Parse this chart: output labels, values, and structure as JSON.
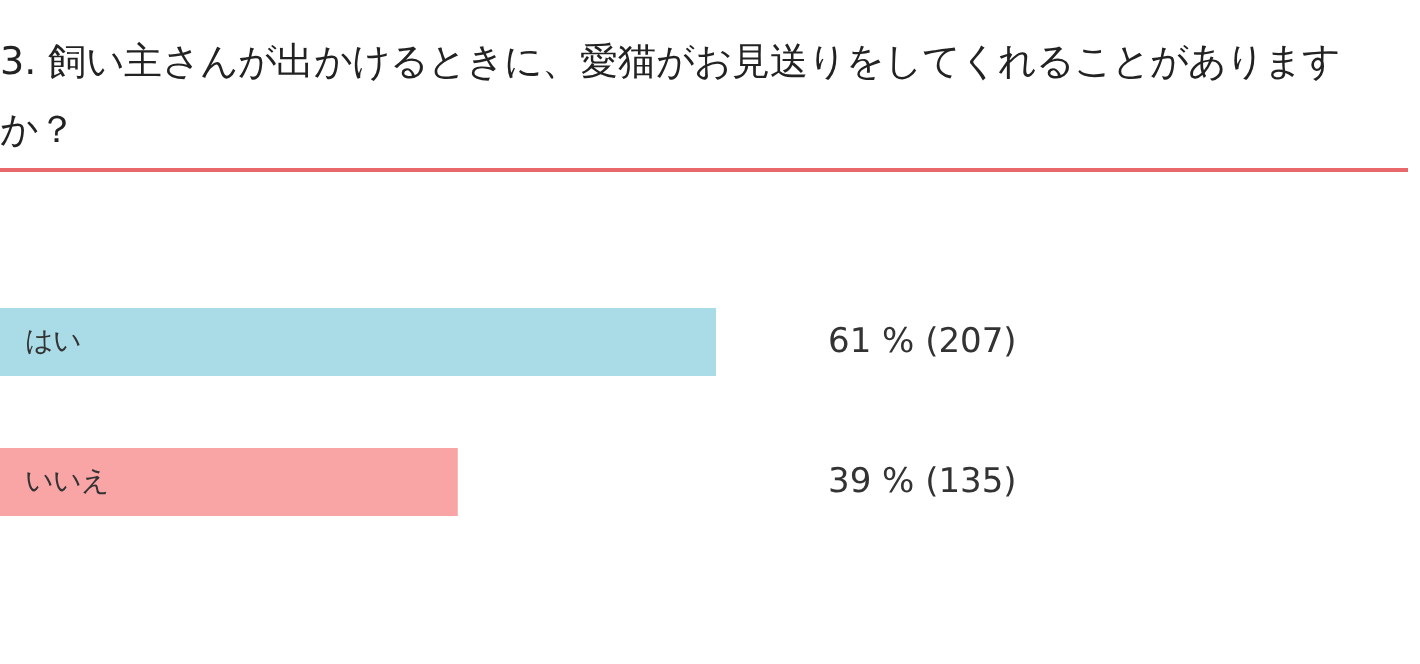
{
  "chart_data": {
    "type": "bar",
    "orientation": "horizontal",
    "title": "3. 飼い主さんが出かけるときに、愛猫がお見送りをしてくれることがありますか？",
    "categories": [
      "はい",
      "いいえ"
    ],
    "values": [
      61,
      39
    ],
    "colors": [
      "#a9dce6",
      "#f9a5a6"
    ],
    "value_labels": [
      "61 % (207)",
      "39 % (135)"
    ]
  }
}
